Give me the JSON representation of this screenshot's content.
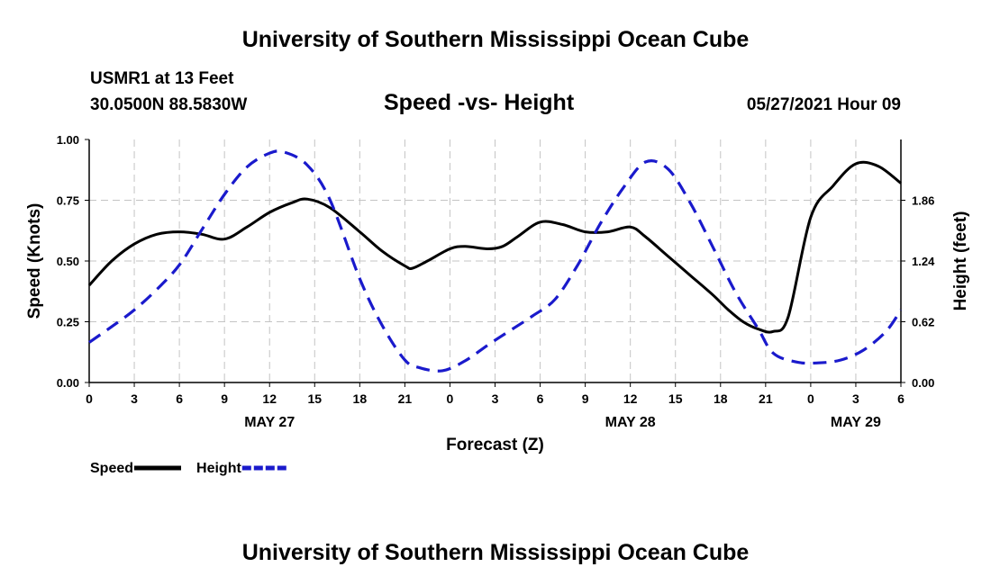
{
  "header": {
    "title": "University of Southern Mississippi Ocean Cube",
    "station": "USMR1 at 13 Feet",
    "coordinates": "30.0500N  88.5830W",
    "datetime": "05/27/2021 Hour 09"
  },
  "footer": {
    "title": "University of Southern Mississippi Ocean Cube"
  },
  "chart_data": {
    "type": "line",
    "title": "Speed -vs- Height",
    "xlabel": "Forecast (Z)",
    "ylabel": "Speed (Knots)",
    "y2label": "Height (feet)",
    "x_range_hours": [
      0,
      54
    ],
    "x_ticks": [
      {
        "h": 0,
        "label": "0"
      },
      {
        "h": 3,
        "label": "3"
      },
      {
        "h": 6,
        "label": "6"
      },
      {
        "h": 9,
        "label": "9"
      },
      {
        "h": 12,
        "label": "12"
      },
      {
        "h": 15,
        "label": "15"
      },
      {
        "h": 18,
        "label": "18"
      },
      {
        "h": 21,
        "label": "21"
      },
      {
        "h": 24,
        "label": "0"
      },
      {
        "h": 27,
        "label": "3"
      },
      {
        "h": 30,
        "label": "6"
      },
      {
        "h": 33,
        "label": "9"
      },
      {
        "h": 36,
        "label": "12"
      },
      {
        "h": 39,
        "label": "15"
      },
      {
        "h": 42,
        "label": "18"
      },
      {
        "h": 45,
        "label": "21"
      },
      {
        "h": 48,
        "label": "0"
      },
      {
        "h": 51,
        "label": "3"
      },
      {
        "h": 54,
        "label": "6"
      }
    ],
    "date_labels": [
      {
        "h": 12,
        "label": "MAY 27"
      },
      {
        "h": 36,
        "label": "MAY 28"
      },
      {
        "h": 51,
        "label": "MAY 29"
      }
    ],
    "ylim": [
      0,
      1.0
    ],
    "y_ticks": [
      {
        "v": 0.0,
        "label": "0.00"
      },
      {
        "v": 0.25,
        "label": "0.25"
      },
      {
        "v": 0.5,
        "label": "0.50"
      },
      {
        "v": 0.75,
        "label": "0.75"
      },
      {
        "v": 1.0,
        "label": "1.00"
      }
    ],
    "y2lim": [
      0,
      2.48
    ],
    "y2_ticks": [
      {
        "v": 0.0,
        "label": "0.00"
      },
      {
        "v": 0.62,
        "label": "0.62"
      },
      {
        "v": 1.24,
        "label": "1.24"
      },
      {
        "v": 1.86,
        "label": "1.86"
      }
    ],
    "grid": true,
    "legend_position": "bottom-left",
    "series": [
      {
        "name": "Speed",
        "axis": "left",
        "color": "#000000",
        "style": "solid",
        "x": [
          0,
          1.5,
          3,
          4.5,
          6,
          7.5,
          9,
          10.5,
          12,
          13.5,
          14.5,
          16,
          18,
          19.5,
          21,
          21.5,
          22.5,
          24,
          25,
          26.5,
          27.5,
          28.5,
          30,
          31.5,
          33,
          34.5,
          36,
          37,
          38.5,
          40,
          41.5,
          42.5,
          43.5,
          44.5,
          45.5,
          46.5,
          48,
          49.5,
          51,
          52.5,
          54
        ],
        "values": [
          0.4,
          0.5,
          0.57,
          0.61,
          0.62,
          0.61,
          0.59,
          0.64,
          0.7,
          0.74,
          0.755,
          0.72,
          0.62,
          0.54,
          0.48,
          0.47,
          0.5,
          0.55,
          0.56,
          0.55,
          0.56,
          0.6,
          0.66,
          0.65,
          0.62,
          0.62,
          0.64,
          0.6,
          0.52,
          0.44,
          0.36,
          0.3,
          0.25,
          0.22,
          0.21,
          0.27,
          0.68,
          0.81,
          0.9,
          0.89,
          0.82
        ]
      },
      {
        "name": "Height",
        "axis": "right",
        "color": "#1a1acc",
        "style": "dashed",
        "x": [
          0,
          1.5,
          3,
          4.5,
          6,
          7.5,
          9,
          10.5,
          12,
          13,
          14.5,
          16,
          18,
          19.5,
          21,
          22,
          23.5,
          25,
          26.5,
          28,
          29.5,
          31,
          32.5,
          34,
          35.5,
          37,
          38.5,
          40,
          41.5,
          43,
          44.5,
          45.5,
          47,
          48.5,
          50,
          51.5,
          53,
          54
        ],
        "values": [
          0.41,
          0.57,
          0.74,
          0.95,
          1.2,
          1.56,
          1.92,
          2.2,
          2.34,
          2.35,
          2.22,
          1.87,
          1.06,
          0.58,
          0.23,
          0.15,
          0.12,
          0.22,
          0.38,
          0.53,
          0.68,
          0.85,
          1.2,
          1.62,
          1.98,
          2.25,
          2.18,
          1.83,
          1.38,
          0.92,
          0.55,
          0.3,
          0.21,
          0.2,
          0.23,
          0.33,
          0.52,
          0.74
        ]
      }
    ],
    "legend": [
      {
        "name": "Speed",
        "color": "#000000",
        "style": "solid"
      },
      {
        "name": "Height",
        "color": "#1a1acc",
        "style": "dashed"
      }
    ]
  }
}
